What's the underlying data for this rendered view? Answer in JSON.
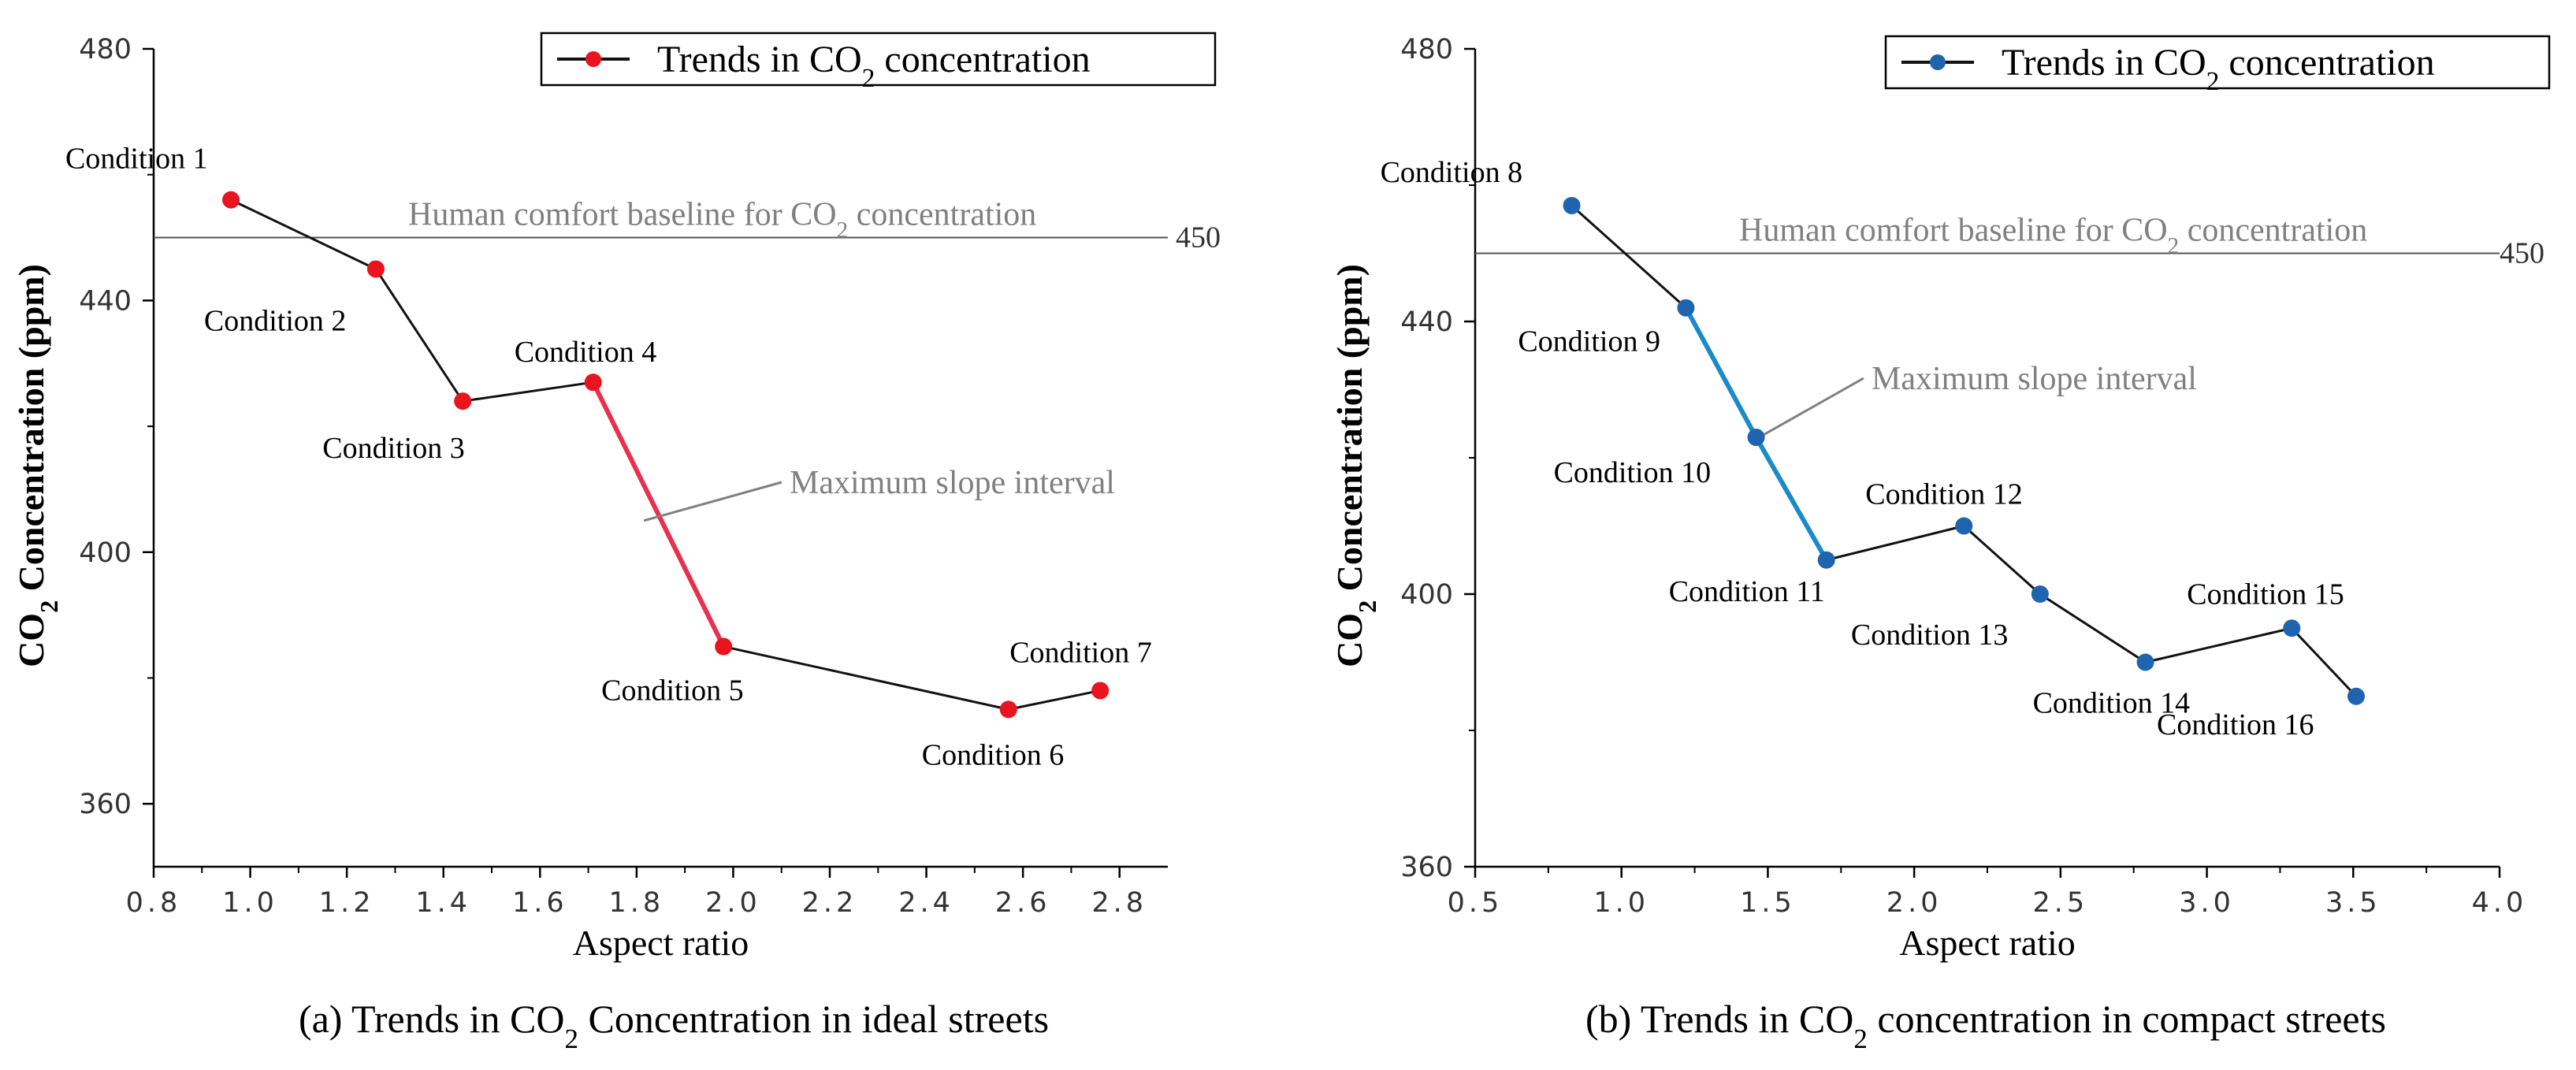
{
  "colors": {
    "left_marker": "#e8141f",
    "left_highlight": "#e8304f",
    "right_marker": "#1e64ae",
    "right_highlight": "#1a8ac8",
    "line": "#111111",
    "baseline": "#555555",
    "annotation": "#808080"
  },
  "chart_data": [
    {
      "type": "line",
      "panel": "left",
      "caption": "(a) Trends in CO2 Concentration in ideal streets",
      "title": "",
      "xlabel": "Aspect ratio",
      "ylabel": "CO2 Concentration (ppm)",
      "xlim": [
        0.8,
        2.9
      ],
      "ylim": [
        350,
        480
      ],
      "xticks": [
        0.8,
        1.0,
        1.2,
        1.4,
        1.6,
        1.8,
        2.0,
        2.2,
        2.4,
        2.6,
        2.8
      ],
      "xtick_labels": [
        "0.8",
        "1.0",
        "1.2",
        "1.4",
        "1.6",
        "1.8",
        "2.0",
        "2.2",
        "2.4",
        "2.6",
        "2.8"
      ],
      "yticks": [
        360,
        400,
        440,
        480
      ],
      "ytick_labels": [
        "360",
        "400",
        "440",
        "480"
      ],
      "legend": "Trends in CO2 concentration",
      "legend_position": "top-right",
      "baseline": {
        "value": 450,
        "label": "Human comfort baseline for CO2 concentration",
        "value_label": "450"
      },
      "max_slope_label": "Maximum slope interval",
      "max_slope_segment": [
        3,
        4
      ],
      "points": [
        {
          "x": 0.96,
          "y": 456,
          "label": "Condition 1"
        },
        {
          "x": 1.26,
          "y": 445,
          "label": "Condition 2"
        },
        {
          "x": 1.44,
          "y": 424,
          "label": "Condition 3"
        },
        {
          "x": 1.71,
          "y": 427,
          "label": "Condition 4"
        },
        {
          "x": 1.98,
          "y": 385,
          "label": "Condition 5"
        },
        {
          "x": 2.57,
          "y": 375,
          "label": "Condition 6"
        },
        {
          "x": 2.76,
          "y": 378,
          "label": "Condition 7"
        }
      ]
    },
    {
      "type": "line",
      "panel": "right",
      "caption": "(b) Trends in CO2 concentration in compact streets",
      "title": "",
      "xlabel": "Aspect ratio",
      "ylabel": "CO2 Concentration (ppm)",
      "xlim": [
        0.5,
        4.0
      ],
      "ylim": [
        360,
        480
      ],
      "xticks": [
        0.5,
        1.0,
        1.5,
        2.0,
        2.5,
        3.0,
        3.5,
        4.0
      ],
      "xtick_labels": [
        "0.5",
        "1.0",
        "1.5",
        "2.0",
        "2.5",
        "3.0",
        "3.5",
        "4.0"
      ],
      "yticks": [
        360,
        400,
        440,
        480
      ],
      "ytick_labels": [
        "360",
        "400",
        "440",
        "480"
      ],
      "legend": "Trends in CO2 concentration",
      "legend_position": "top-right",
      "baseline": {
        "value": 450,
        "label": "Human comfort baseline for CO2 concentration",
        "value_label": "450"
      },
      "max_slope_label": "Maximum slope interval",
      "max_slope_segment": [
        1,
        3
      ],
      "points": [
        {
          "x": 0.83,
          "y": 457,
          "label": "Condition 8"
        },
        {
          "x": 1.22,
          "y": 442,
          "label": "Condition 9"
        },
        {
          "x": 1.46,
          "y": 423,
          "label": "Condition 10"
        },
        {
          "x": 1.7,
          "y": 405,
          "label": "Condition 11"
        },
        {
          "x": 2.17,
          "y": 410,
          "label": "Condition 12"
        },
        {
          "x": 2.43,
          "y": 400,
          "label": "Condition 13"
        },
        {
          "x": 2.79,
          "y": 390,
          "label": "Condition 14"
        },
        {
          "x": 3.29,
          "y": 395,
          "label": "Condition 15"
        },
        {
          "x": 3.51,
          "y": 385,
          "label": "Condition 16"
        }
      ]
    }
  ]
}
